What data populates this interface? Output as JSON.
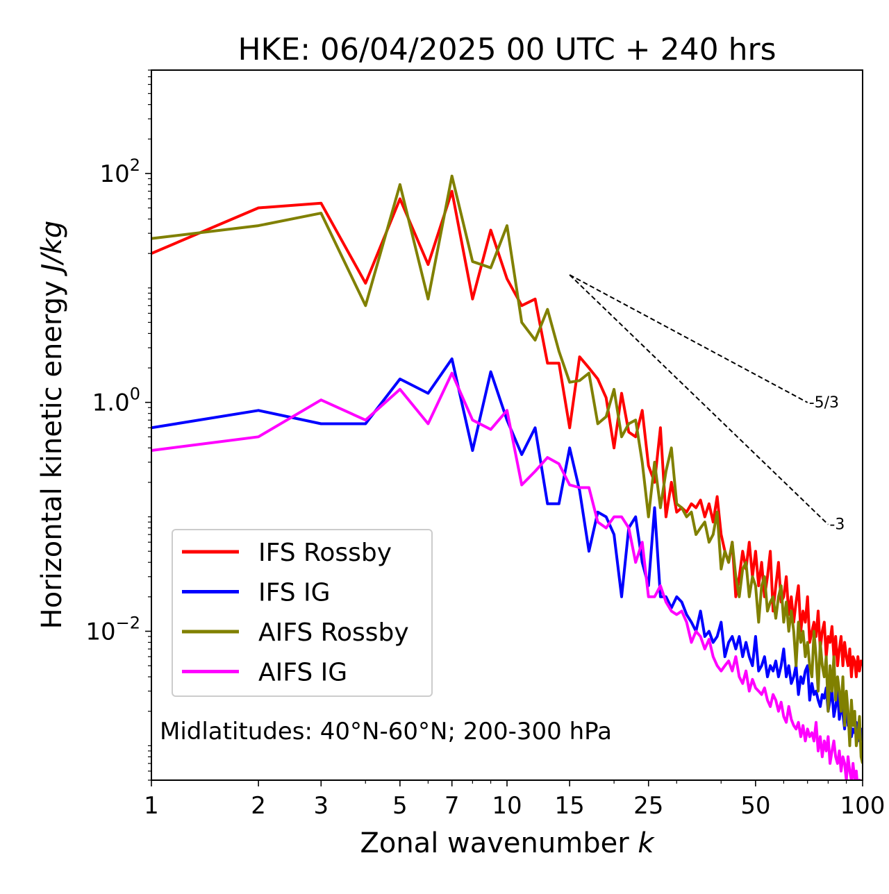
{
  "chart_data": {
    "type": "line",
    "title": "HKE: 06/04/2025 00 UTC + 240 hrs",
    "xlabel": "Zonal wavenumber",
    "xlabel_italic": "k",
    "ylabel": "Horizontal kinetic energy",
    "ylabel_italic": "J/kg",
    "x_scale": "log",
    "y_scale": "log",
    "xlim": [
      1,
      100
    ],
    "ylim": [
      0.0005,
      800
    ],
    "x_ticks": [
      {
        "value": 1,
        "label": "1"
      },
      {
        "value": 2,
        "label": "2"
      },
      {
        "value": 3,
        "label": "3"
      },
      {
        "value": 5,
        "label": "5"
      },
      {
        "value": 7,
        "label": "7"
      },
      {
        "value": 10,
        "label": "10"
      },
      {
        "value": 15,
        "label": "15"
      },
      {
        "value": 25,
        "label": "25"
      },
      {
        "value": 50,
        "label": "50"
      },
      {
        "value": 100,
        "label": "100"
      }
    ],
    "y_ticks": [
      {
        "value": 100,
        "base": "10",
        "exp": "2"
      },
      {
        "value": 1,
        "base": "1.0",
        "exp": "0"
      },
      {
        "value": 0.01,
        "base": "10",
        "exp": "−2"
      }
    ],
    "grid": false,
    "legend_position": "lower-left",
    "annotation": "Midlatitudes: 40°N-60°N; 200-300 hPa",
    "reference_lines": [
      {
        "label": "-5/3",
        "slope": -1.6667,
        "x": [
          15,
          70
        ],
        "y_start": 13
      },
      {
        "label": "-3",
        "slope": -3,
        "x": [
          15,
          80
        ],
        "y_start": 13
      }
    ],
    "x": [
      1,
      2,
      3,
      4,
      5,
      6,
      7,
      8,
      9,
      10,
      11,
      12,
      13,
      14,
      15,
      16,
      17,
      18,
      19,
      20,
      21,
      22,
      23,
      24,
      25,
      26,
      27,
      28,
      29,
      30,
      31,
      32,
      33,
      34,
      35,
      36,
      37,
      38,
      39,
      40,
      41,
      42,
      43,
      44,
      45,
      46,
      47,
      48,
      49,
      50,
      51,
      52,
      53,
      54,
      55,
      56,
      57,
      58,
      59,
      60,
      61,
      62,
      63,
      64,
      65,
      66,
      67,
      68,
      69,
      70,
      71,
      72,
      73,
      74,
      75,
      76,
      77,
      78,
      79,
      80,
      81,
      82,
      83,
      84,
      85,
      86,
      87,
      88,
      89,
      90,
      91,
      92,
      93,
      94,
      95,
      96,
      97,
      98,
      99,
      100
    ],
    "series": [
      {
        "name": "IFS Rossby",
        "color": "#ff0000",
        "values": [
          20,
          50,
          55,
          11,
          60,
          16,
          70,
          8,
          32,
          12,
          7,
          8,
          2.2,
          2.2,
          0.6,
          2.5,
          2,
          1.6,
          1.1,
          0.4,
          1.2,
          0.55,
          0.5,
          0.85,
          0.28,
          0.2,
          0.6,
          0.1,
          0.2,
          0.11,
          0.12,
          0.11,
          0.13,
          0.12,
          0.14,
          0.1,
          0.13,
          0.09,
          0.15,
          0.07,
          0.05,
          0.04,
          0.06,
          0.02,
          0.03,
          0.05,
          0.035,
          0.06,
          0.03,
          0.05,
          0.025,
          0.04,
          0.02,
          0.03,
          0.05,
          0.015,
          0.025,
          0.04,
          0.018,
          0.02,
          0.03,
          0.014,
          0.02,
          0.012,
          0.018,
          0.025,
          0.01,
          0.015,
          0.012,
          0.02,
          0.008,
          0.01,
          0.012,
          0.009,
          0.015,
          0.007,
          0.01,
          0.012,
          0.006,
          0.009,
          0.008,
          0.011,
          0.006,
          0.009,
          0.005,
          0.007,
          0.009,
          0.005,
          0.008,
          0.006,
          0.005,
          0.007,
          0.004,
          0.006,
          0.0055,
          0.004,
          0.006,
          0.0045,
          0.0055,
          0.005
        ]
      },
      {
        "name": "IFS IG",
        "color": "#0000ff",
        "values": [
          0.6,
          0.85,
          0.65,
          0.65,
          1.6,
          1.2,
          2.4,
          0.38,
          1.85,
          0.7,
          0.35,
          0.6,
          0.13,
          0.13,
          0.4,
          0.17,
          0.05,
          0.11,
          0.1,
          0.07,
          0.02,
          0.08,
          0.1,
          0.04,
          0.025,
          0.12,
          0.02,
          0.02,
          0.016,
          0.02,
          0.018,
          0.014,
          0.012,
          0.01,
          0.015,
          0.009,
          0.01,
          0.008,
          0.009,
          0.012,
          0.006,
          0.008,
          0.009,
          0.007,
          0.009,
          0.006,
          0.008,
          0.006,
          0.005,
          0.009,
          0.0045,
          0.005,
          0.006,
          0.004,
          0.005,
          0.0045,
          0.0055,
          0.004,
          0.005,
          0.007,
          0.004,
          0.005,
          0.0035,
          0.004,
          0.005,
          0.0028,
          0.004,
          0.0035,
          0.0045,
          0.005,
          0.0025,
          0.0035,
          0.0028,
          0.003,
          0.0025,
          0.0022,
          0.0028,
          0.0026,
          0.0032,
          0.002,
          0.0025,
          0.003,
          0.0018,
          0.0022,
          0.003,
          0.0017,
          0.0022,
          0.0019,
          0.0014,
          0.0025,
          0.0015,
          0.0018,
          0.0012,
          0.0014,
          0.0013,
          0.0016,
          0.0011,
          0.0012,
          0.0014,
          0.0011
        ]
      },
      {
        "name": "AIFS Rossby",
        "color": "#808000",
        "values": [
          27,
          35,
          45,
          7,
          80,
          8,
          95,
          17,
          15,
          35,
          5,
          3.5,
          6.5,
          2.8,
          1.5,
          1.55,
          1.8,
          0.65,
          0.75,
          1.3,
          0.5,
          0.65,
          0.7,
          0.3,
          0.1,
          0.3,
          0.12,
          0.25,
          0.4,
          0.13,
          0.12,
          0.1,
          0.11,
          0.07,
          0.08,
          0.09,
          0.06,
          0.07,
          0.11,
          0.035,
          0.05,
          0.04,
          0.06,
          0.03,
          0.02,
          0.035,
          0.04,
          0.02,
          0.03,
          0.025,
          0.012,
          0.025,
          0.03,
          0.015,
          0.018,
          0.02,
          0.013,
          0.02,
          0.025,
          0.012,
          0.018,
          0.01,
          0.015,
          0.01,
          0.005,
          0.012,
          0.008,
          0.01,
          0.006,
          0.008,
          0.005,
          0.004,
          0.01,
          0.006,
          0.003,
          0.008,
          0.005,
          0.004,
          0.006,
          0.002,
          0.005,
          0.003,
          0.006,
          0.0025,
          0.004,
          0.003,
          0.002,
          0.004,
          0.0015,
          0.003,
          0.002,
          0.001,
          0.0025,
          0.0015,
          0.002,
          0.001,
          0.0012,
          0.0018,
          0.0008,
          0.0007
        ]
      },
      {
        "name": "AIFS IG",
        "color": "#ff00ff",
        "values": [
          0.38,
          0.5,
          1.05,
          0.7,
          1.3,
          0.65,
          1.8,
          0.7,
          0.58,
          0.85,
          0.19,
          0.25,
          0.33,
          0.29,
          0.19,
          0.18,
          0.18,
          0.09,
          0.08,
          0.1,
          0.1,
          0.08,
          0.04,
          0.06,
          0.02,
          0.02,
          0.025,
          0.018,
          0.015,
          0.014,
          0.015,
          0.012,
          0.008,
          0.01,
          0.009,
          0.007,
          0.0085,
          0.006,
          0.005,
          0.0045,
          0.005,
          0.0055,
          0.0045,
          0.006,
          0.004,
          0.0035,
          0.0045,
          0.003,
          0.0038,
          0.0032,
          0.003,
          0.0028,
          0.0032,
          0.0025,
          0.0022,
          0.0028,
          0.0025,
          0.002,
          0.0024,
          0.0018,
          0.0016,
          0.0022,
          0.0017,
          0.0015,
          0.0014,
          0.0016,
          0.0012,
          0.0015,
          0.0011,
          0.0014,
          0.0012,
          0.0013,
          0.0011,
          0.0016,
          0.0009,
          0.0012,
          0.0008,
          0.0011,
          0.0009,
          0.0012,
          0.0007,
          0.0009,
          0.0011,
          0.0008,
          0.0007,
          0.0009,
          0.0006,
          0.0008,
          0.0007,
          0.0005,
          0.0008,
          0.0006,
          0.0005,
          0.0007,
          0.0005,
          0.0006,
          0.0004,
          0.0005,
          0.0004,
          0.0004
        ]
      }
    ]
  }
}
